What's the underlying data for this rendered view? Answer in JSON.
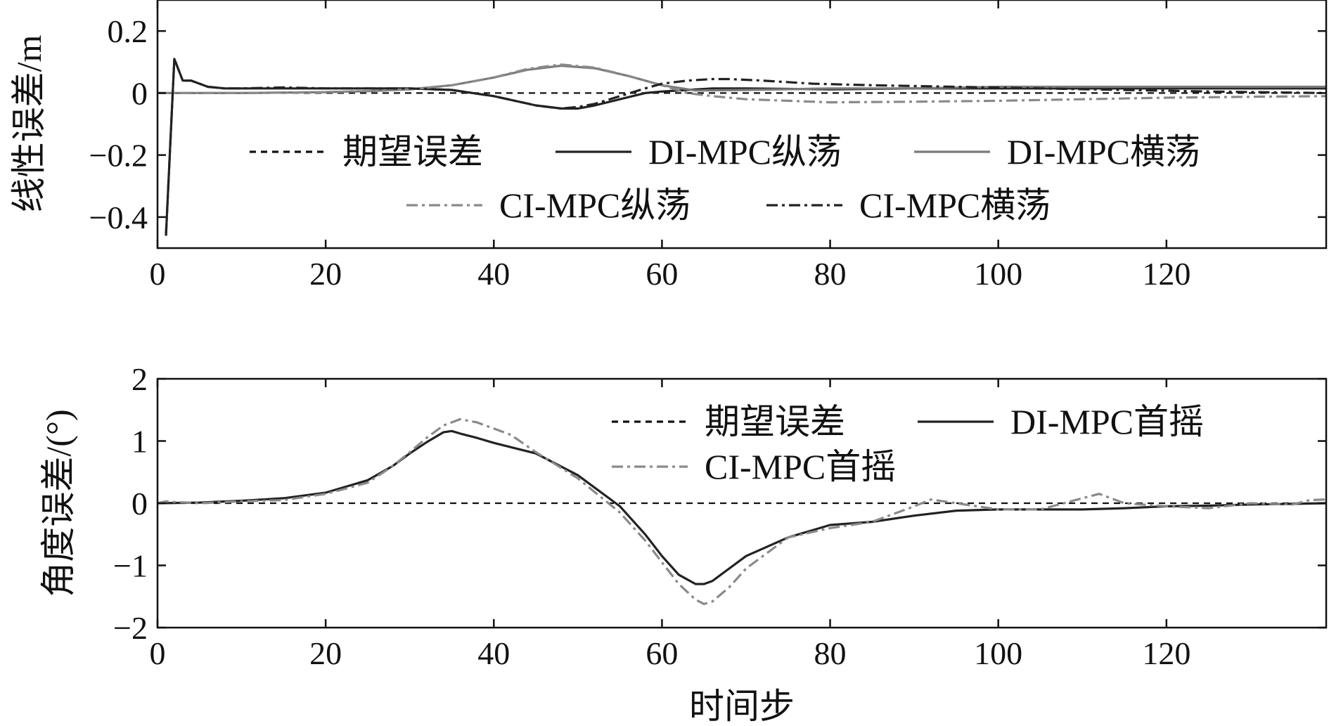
{
  "chart_data": [
    {
      "type": "line",
      "ylabel": "线性误差/m",
      "xlabel": "",
      "xlim": [
        0,
        139
      ],
      "ylim": [
        -0.5,
        0.3
      ],
      "xticks": [
        0,
        20,
        40,
        60,
        80,
        100,
        120
      ],
      "xtick_labels": [
        "0",
        "20",
        "40",
        "60",
        "80",
        "100",
        "120"
      ],
      "yticks": [
        0.2,
        0,
        -0.2,
        -0.4
      ],
      "ytick_labels": [
        "0.2",
        "0",
        "−0.2",
        "−0.4"
      ],
      "legend_position": "center",
      "series": [
        {
          "name": "期望误差",
          "color": "#111111",
          "dash": "dashed",
          "x": [
            0,
            139
          ],
          "y": [
            0,
            0
          ]
        },
        {
          "name": "DI-MPC纵荡",
          "color": "#222222",
          "dash": "solid",
          "x": [
            1,
            2,
            3,
            4,
            5,
            6,
            8,
            10,
            15,
            20,
            25,
            30,
            35,
            40,
            45,
            48,
            50,
            52,
            55,
            58,
            60,
            63,
            66,
            70,
            80,
            90,
            100,
            110,
            120,
            130,
            139
          ],
          "y": [
            -0.46,
            0.11,
            0.04,
            0.04,
            0.03,
            0.02,
            0.015,
            0.015,
            0.015,
            0.015,
            0.015,
            0.015,
            0.01,
            -0.01,
            -0.04,
            -0.05,
            -0.05,
            -0.04,
            -0.02,
            0.0,
            0.005,
            0.01,
            0.015,
            0.015,
            0.012,
            0.015,
            0.015,
            0.015,
            0.015,
            0.015,
            0.015
          ]
        },
        {
          "name": "DI-MPC横荡",
          "color": "#7a7a7a",
          "dash": "solid",
          "x": [
            0,
            10,
            20,
            25,
            30,
            35,
            40,
            44,
            48,
            52,
            56,
            60,
            64,
            70,
            80,
            90,
            100,
            110,
            120,
            130,
            139
          ],
          "y": [
            0,
            0,
            0.003,
            0.006,
            0.012,
            0.025,
            0.05,
            0.075,
            0.088,
            0.08,
            0.055,
            0.025,
            0.008,
            0.01,
            0.015,
            0.015,
            0.02,
            0.02,
            0.02,
            0.02,
            0.02
          ]
        },
        {
          "name": "CI-MPC纵荡",
          "color": "#8a8a8a",
          "dash": "dashdot",
          "x": [
            0,
            10,
            20,
            25,
            30,
            35,
            40,
            44,
            48,
            52,
            56,
            60,
            63,
            66,
            70,
            75,
            80,
            90,
            100,
            110,
            120,
            130,
            139
          ],
          "y": [
            0,
            0,
            0.003,
            0.006,
            0.012,
            0.025,
            0.05,
            0.078,
            0.092,
            0.082,
            0.055,
            0.025,
            0.0,
            -0.01,
            -0.02,
            -0.025,
            -0.03,
            -0.028,
            -0.025,
            -0.02,
            -0.015,
            -0.012,
            -0.01
          ]
        },
        {
          "name": "CI-MPC横荡",
          "color": "#222222",
          "dash": "dashdot",
          "x": [
            1,
            2,
            3,
            4,
            5,
            6,
            8,
            10,
            15,
            20,
            25,
            30,
            35,
            40,
            45,
            48,
            50,
            52,
            55,
            58,
            60,
            63,
            66,
            68,
            72,
            78,
            85,
            95,
            105,
            115,
            125,
            139
          ],
          "y": [
            -0.46,
            0.11,
            0.04,
            0.04,
            0.03,
            0.02,
            0.015,
            0.015,
            0.018,
            0.015,
            0.015,
            0.015,
            0.01,
            -0.01,
            -0.04,
            -0.05,
            -0.045,
            -0.035,
            -0.01,
            0.015,
            0.03,
            0.04,
            0.045,
            0.045,
            0.04,
            0.03,
            0.025,
            0.02,
            0.015,
            0.01,
            0.005,
            0.0
          ]
        }
      ]
    },
    {
      "type": "line",
      "ylabel": "角度误差/(°)",
      "xlabel": "时间步",
      "xlim": [
        0,
        139
      ],
      "ylim": [
        -2,
        2
      ],
      "xticks": [
        0,
        20,
        40,
        60,
        80,
        100,
        120
      ],
      "xtick_labels": [
        "0",
        "20",
        "40",
        "60",
        "80",
        "100",
        "120"
      ],
      "yticks": [
        2,
        1,
        0,
        -1,
        -2
      ],
      "ytick_labels": [
        "2",
        "1",
        "0",
        "−1",
        "−2"
      ],
      "legend_position": "top-right",
      "series": [
        {
          "name": "期望误差",
          "color": "#111111",
          "dash": "dashed",
          "x": [
            0,
            139
          ],
          "y": [
            0,
            0
          ]
        },
        {
          "name": "DI-MPC首摇",
          "color": "#222222",
          "dash": "solid",
          "x": [
            0,
            5,
            10,
            15,
            20,
            22,
            25,
            28,
            30,
            32,
            34,
            35,
            36,
            38,
            40,
            45,
            50,
            55,
            58,
            60,
            62,
            64,
            65,
            66,
            68,
            70,
            75,
            80,
            85,
            90,
            95,
            100,
            105,
            110,
            115,
            120,
            125,
            130,
            135,
            139
          ],
          "y": [
            0,
            0.01,
            0.04,
            0.08,
            0.17,
            0.25,
            0.37,
            0.6,
            0.8,
            0.98,
            1.14,
            1.16,
            1.12,
            1.05,
            0.97,
            0.8,
            0.45,
            -0.05,
            -0.5,
            -0.85,
            -1.15,
            -1.3,
            -1.3,
            -1.25,
            -1.05,
            -0.85,
            -0.55,
            -0.35,
            -0.3,
            -0.2,
            -0.12,
            -0.1,
            -0.1,
            -0.1,
            -0.08,
            -0.05,
            -0.04,
            -0.02,
            -0.01,
            0.0
          ]
        },
        {
          "name": "CI-MPC首摇",
          "color": "#8a8a8a",
          "dash": "dashdot",
          "x": [
            0,
            1,
            2,
            5,
            10,
            15,
            20,
            22,
            25,
            28,
            30,
            32,
            34,
            36,
            38,
            40,
            42,
            45,
            50,
            55,
            58,
            60,
            62,
            64,
            65,
            66,
            68,
            70,
            75,
            80,
            85,
            90,
            92,
            95,
            100,
            105,
            110,
            112,
            115,
            120,
            125,
            130,
            135,
            137,
            139
          ],
          "y": [
            0,
            0.03,
            0.02,
            0.0,
            0.03,
            0.05,
            0.15,
            0.22,
            0.33,
            0.6,
            0.82,
            1.05,
            1.25,
            1.35,
            1.3,
            1.2,
            1.1,
            0.82,
            0.4,
            -0.15,
            -0.6,
            -0.95,
            -1.3,
            -1.55,
            -1.62,
            -1.58,
            -1.35,
            -1.05,
            -0.55,
            -0.4,
            -0.3,
            -0.05,
            0.06,
            0.0,
            -0.1,
            -0.1,
            0.08,
            0.15,
            0.0,
            -0.05,
            -0.08,
            0.0,
            -0.02,
            0.05,
            0.06
          ]
        }
      ]
    }
  ]
}
